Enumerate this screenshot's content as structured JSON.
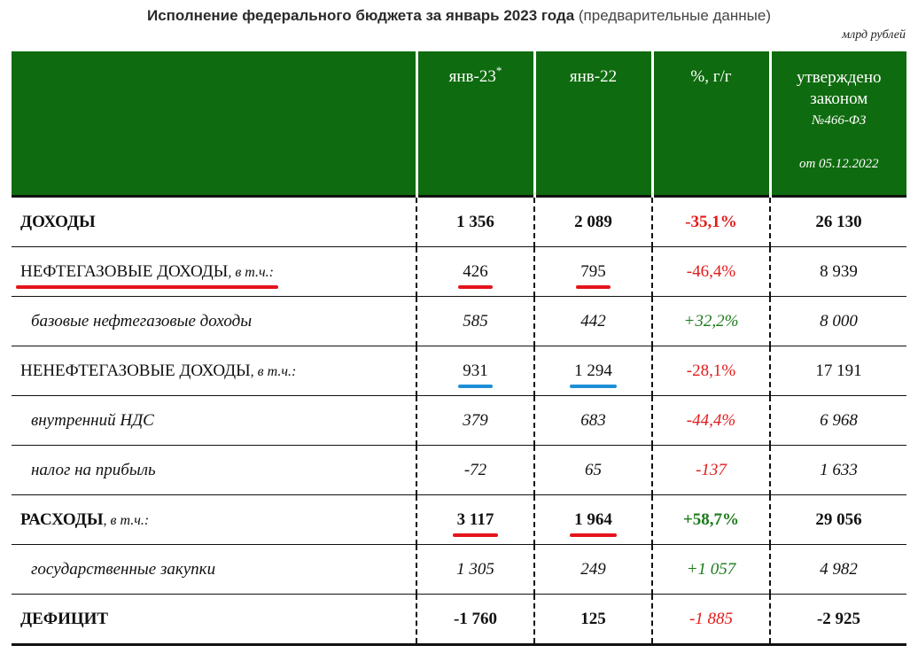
{
  "header": {
    "title_bold": "Исполнение федерального бюджета за январь 2023 года",
    "title_sub": "(предварительные данные)",
    "units": "млрд рублей"
  },
  "columns": {
    "jan23": "янв-23",
    "jan23_mark": "*",
    "jan22": "янв-22",
    "yoy": "%, г/г",
    "approved_l1": "утверждено",
    "approved_l2": "законом",
    "approved_l3": "№466-ФЗ",
    "approved_l4": "от 05.12.2022"
  },
  "rows": [
    {
      "label": "ДОХОДЫ",
      "suffix": "",
      "jan23": "1 356",
      "jan22": "2 089",
      "yoy": "-35,1%",
      "approved": "26 130"
    },
    {
      "label": "НЕФТЕГАЗОВЫЕ ДОХОДЫ",
      "suffix": ", в т.ч.:",
      "jan23": "426",
      "jan22": "795",
      "yoy": "-46,4%",
      "approved": "8 939"
    },
    {
      "label": "базовые нефтегазовые доходы",
      "suffix": "",
      "jan23": "585",
      "jan22": "442",
      "yoy": "+32,2%",
      "approved": "8 000"
    },
    {
      "label": "НЕНЕФТЕГАЗОВЫЕ ДОХОДЫ",
      "suffix": ", в т.ч.:",
      "jan23": "931",
      "jan22": "1 294",
      "yoy": "-28,1%",
      "approved": "17 191"
    },
    {
      "label": "внутренний НДС",
      "suffix": "",
      "jan23": "379",
      "jan22": "683",
      "yoy": "-44,4%",
      "approved": "6 968"
    },
    {
      "label": "налог на прибыль",
      "suffix": "",
      "jan23": "-72",
      "jan22": "65",
      "yoy": "-137",
      "approved": "1 633"
    },
    {
      "label": "РАСХОДЫ",
      "suffix": ", в т.ч.:",
      "jan23": "3 117",
      "jan22": "1 964",
      "yoy": "+58,7%",
      "approved": "29 056"
    },
    {
      "label": "государственные закупки",
      "suffix": "",
      "jan23": "1 305",
      "jan22": "249",
      "yoy": "+1 057",
      "approved": "4 982"
    },
    {
      "label": "ДЕФИЦИТ",
      "suffix": "",
      "jan23": "-1 760",
      "jan22": "125",
      "yoy": "-1 885",
      "approved": "-2 925"
    }
  ],
  "colors": {
    "header_green": "#0f6b0f",
    "negative": "#e21b1b",
    "positive": "#1a7a1a",
    "underline_red": "#e4141b",
    "underline_blue": "#1e8fd6"
  }
}
